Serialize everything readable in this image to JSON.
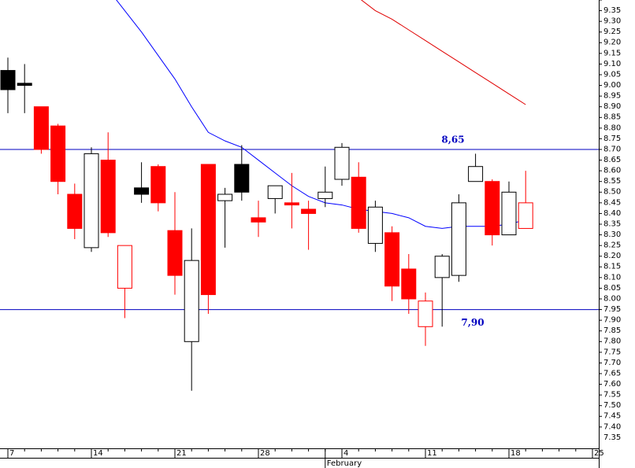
{
  "chart_data": {
    "type": "candlestick",
    "categories": [
      "7",
      null,
      null,
      null,
      null,
      "14",
      null,
      null,
      null,
      null,
      "21",
      null,
      null,
      null,
      null,
      "28",
      null,
      null,
      null,
      null,
      "4",
      null,
      null,
      null,
      null,
      "11",
      null,
      null,
      null,
      null,
      "18",
      null,
      null,
      null,
      null,
      "25"
    ],
    "months": [
      {
        "name": "February",
        "index": 20
      }
    ],
    "open": [
      9.02,
      8.96,
      8.85,
      8.76,
      8.44,
      8.19,
      8.6,
      8.0,
      8.47,
      8.57,
      8.27,
      7.75,
      8.58,
      8.41,
      8.58,
      8.33,
      8.42,
      8.4,
      8.37,
      8.42,
      8.51,
      8.52,
      8.21,
      8.26,
      8.09,
      7.82,
      8.05,
      8.06,
      8.5,
      8.5,
      8.25,
      8.28,
      null,
      null,
      null,
      null
    ],
    "high": [
      9.08,
      9.05,
      8.85,
      8.77,
      8.49,
      8.66,
      8.73,
      8.2,
      8.59,
      8.58,
      8.45,
      8.28,
      8.58,
      8.47,
      8.67,
      8.41,
      8.48,
      8.54,
      8.41,
      8.57,
      8.68,
      8.59,
      8.41,
      8.29,
      8.16,
      7.98,
      8.16,
      8.44,
      8.63,
      8.51,
      8.5,
      8.55,
      null,
      null,
      null,
      null
    ],
    "low": [
      8.82,
      8.82,
      8.63,
      8.44,
      8.23,
      8.17,
      8.24,
      7.86,
      8.4,
      8.36,
      7.97,
      7.52,
      7.88,
      8.19,
      8.41,
      8.24,
      8.35,
      8.28,
      8.18,
      8.38,
      8.48,
      8.26,
      8.17,
      7.94,
      7.88,
      7.73,
      7.82,
      8.03,
      8.5,
      8.2,
      8.25,
      8.28,
      null,
      null,
      null,
      null
    ],
    "close": [
      8.93,
      8.95,
      8.65,
      8.5,
      8.28,
      8.63,
      8.26,
      8.2,
      8.44,
      8.4,
      8.06,
      8.13,
      7.97,
      8.44,
      8.45,
      8.31,
      8.48,
      8.39,
      8.35,
      8.45,
      8.66,
      8.28,
      8.38,
      8.01,
      7.95,
      7.94,
      8.15,
      8.4,
      8.57,
      8.25,
      8.45,
      8.4,
      null,
      null,
      null,
      null
    ],
    "up_color": "#000000",
    "down_color": "#ff0000",
    "lines": [
      {
        "color": "#0000ff",
        "values": [
          null,
          null,
          null,
          null,
          null,
          null,
          9.4,
          9.3,
          9.2,
          9.09,
          8.98,
          8.85,
          8.73,
          8.69,
          8.66,
          8.6,
          8.54,
          8.48,
          8.43,
          8.4,
          8.39,
          8.37,
          8.36,
          8.35,
          8.33,
          8.29,
          8.28,
          8.29,
          8.29,
          8.29,
          8.3,
          8.32,
          null,
          null,
          null,
          null
        ]
      },
      {
        "color": "#e00000",
        "values": [
          null,
          null,
          null,
          null,
          null,
          null,
          null,
          null,
          null,
          null,
          null,
          null,
          null,
          null,
          null,
          null,
          null,
          null,
          null,
          null,
          null,
          9.36,
          9.3,
          9.26,
          9.21,
          9.16,
          9.11,
          9.06,
          9.01,
          8.96,
          8.91,
          8.86,
          null,
          null,
          null,
          null
        ]
      }
    ],
    "hlines": [
      {
        "value": 8.65,
        "label": "8,65"
      },
      {
        "value": 7.9,
        "label": "7,90"
      }
    ],
    "hline_color": "#0000c0",
    "ylim": [
      7.25,
      9.35
    ],
    "yticks": [
      7.35,
      {
        "value": 7.4,
        "label": "7.40"
      },
      7.45,
      {
        "value": 7.5,
        "label": "7.50"
      },
      7.55,
      {
        "value": 7.6,
        "label": "7.60"
      },
      7.65,
      {
        "value": 7.7,
        "label": "7.70"
      },
      7.75,
      {
        "value": 7.8,
        "label": "7.80"
      },
      7.85,
      {
        "value": 7.9,
        "label": "7.90"
      },
      7.95,
      {
        "value": 8.0,
        "label": "8.00"
      },
      8.05,
      {
        "value": 8.1,
        "label": "8.10"
      },
      8.15,
      {
        "value": 8.2,
        "label": "8.20"
      },
      8.25,
      {
        "value": 8.3,
        "label": "8.30"
      },
      8.35,
      {
        "value": 8.4,
        "label": "8.40"
      },
      8.45,
      {
        "value": 8.5,
        "label": "8.50"
      },
      8.55,
      {
        "value": 8.6,
        "label": "8.60"
      },
      8.65,
      {
        "value": 8.7,
        "label": "8.70"
      },
      8.75,
      {
        "value": 8.8,
        "label": "8.80"
      },
      8.85,
      {
        "value": 8.9,
        "label": "8.90"
      },
      8.95,
      {
        "value": 9.0,
        "label": "9.00"
      },
      9.05,
      {
        "value": 9.1,
        "label": "9.10"
      },
      9.15,
      {
        "value": 9.2,
        "label": "9.20"
      },
      9.25,
      {
        "value": 9.3,
        "label": "9.30"
      },
      9.35
    ]
  }
}
